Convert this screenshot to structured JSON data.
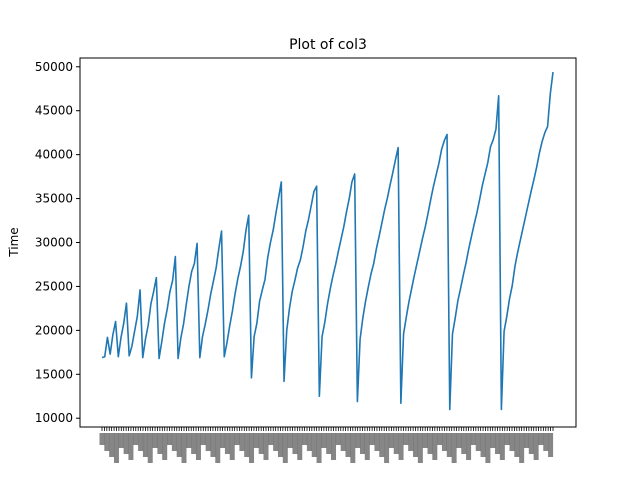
{
  "chart_data": {
    "type": "line",
    "title": "Plot of col3",
    "xlabel": "",
    "ylabel": "Time",
    "ylim": [
      9000,
      51000
    ],
    "yticks": [
      10000,
      15000,
      20000,
      25000,
      30000,
      35000,
      40000,
      45000,
      50000
    ],
    "grid": false,
    "line_color": "#1f77b4",
    "x_tick_count": 188,
    "series": [
      {
        "values": [
          16900,
          17000,
          19200,
          17300,
          19500,
          21000,
          17000,
          19200,
          20800,
          23100,
          17100,
          18200,
          19900,
          21600,
          24600,
          16900,
          19000,
          20600,
          23000,
          24400,
          26000,
          16800,
          18700,
          20800,
          22400,
          24400,
          25700,
          28400,
          16800,
          19100,
          20700,
          22900,
          25000,
          26700,
          27600,
          29900,
          16900,
          19300,
          20700,
          22300,
          24100,
          25600,
          27100,
          29300,
          31300,
          17000,
          18600,
          20500,
          22200,
          24200,
          25900,
          27300,
          29000,
          31400,
          33100,
          14600,
          19300,
          20800,
          23300,
          24600,
          25800,
          28300,
          30000,
          31400,
          33300,
          35100,
          36900,
          14200,
          20000,
          22500,
          24400,
          25700,
          27100,
          28000,
          29500,
          31300,
          32600,
          34200,
          35800,
          36400,
          12500,
          19300,
          20900,
          23000,
          24700,
          26200,
          27500,
          29000,
          30400,
          31800,
          33500,
          35000,
          36900,
          37800,
          11900,
          19000,
          21400,
          23300,
          24900,
          26400,
          27600,
          29300,
          30700,
          32200,
          33700,
          35000,
          36500,
          37900,
          39400,
          40800,
          11700,
          19600,
          21500,
          23300,
          24800,
          26300,
          27700,
          29100,
          30500,
          31800,
          33300,
          34900,
          36400,
          37700,
          39000,
          40600,
          41600,
          42300,
          11000,
          19600,
          21400,
          23400,
          24800,
          26300,
          27700,
          29300,
          30700,
          32100,
          33400,
          34900,
          36500,
          37800,
          39100,
          40900,
          41700,
          42900,
          46700,
          11000,
          19900,
          21600,
          23600,
          25100,
          27300,
          28900,
          30300,
          31700,
          33100,
          34500,
          35900,
          37200,
          38600,
          40200,
          41500,
          42500,
          43200,
          46900,
          49400
        ]
      }
    ]
  }
}
